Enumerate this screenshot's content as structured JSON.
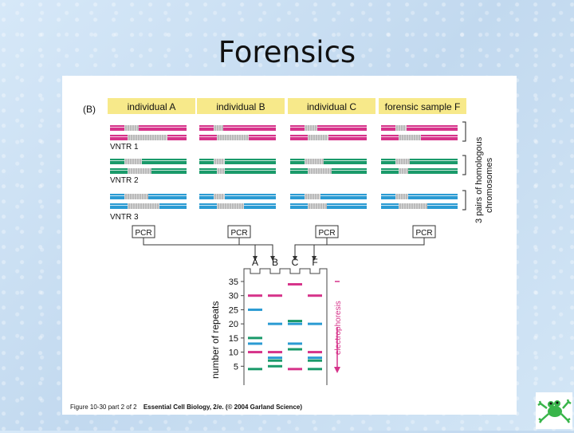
{
  "slide": {
    "title": "Forensics"
  },
  "figure": {
    "panel_label": "(B)",
    "individuals": [
      "individual A",
      "individual B",
      "individual C",
      "forensic sample F"
    ],
    "vntr_labels": [
      "VNTR 1",
      "VNTR 2",
      "VNTR 3"
    ],
    "chromosome_pairs_label_1": "3 pairs of homologous",
    "chromosome_pairs_label_2": "chromosomes",
    "pcr_label": "PCR",
    "lane_labels": [
      "A",
      "B",
      "C",
      "F"
    ],
    "gel_ylabel": "number of repeats",
    "gel_ticks": [
      "35",
      "30",
      "25",
      "20",
      "15",
      "10",
      "5"
    ],
    "electrophoresis_label": "electrophoresis",
    "caption_prefix": "Figure 10-30 part 2 of 2",
    "caption_main": "Essential Cell Biology, 2/e. (© 2004 Garland Science)",
    "colors": {
      "pink": "#d6338a",
      "green": "#1a9a6a",
      "blue": "#2b9bd3",
      "label_bg": "#f7e98a"
    }
  },
  "chart_data": {
    "type": "gel",
    "ylabel": "number of repeats",
    "ylim": [
      0,
      35
    ],
    "lanes": [
      "A",
      "B",
      "C",
      "F"
    ],
    "series": [
      {
        "name": "VNTR 1",
        "color": "pink",
        "bands": {
          "A": [
            10,
            30
          ],
          "B": [
            10,
            30
          ],
          "C": [
            4,
            34
          ],
          "F": [
            10,
            30
          ]
        }
      },
      {
        "name": "VNTR 2",
        "color": "green",
        "bands": {
          "A": [
            4,
            15
          ],
          "B": [
            5,
            7
          ],
          "C": [
            11,
            21
          ],
          "F": [
            4,
            7
          ]
        }
      },
      {
        "name": "VNTR 3",
        "color": "blue",
        "bands": {
          "A": [
            13,
            25
          ],
          "B": [
            8,
            20
          ],
          "C": [
            13,
            20
          ],
          "F": [
            8,
            20
          ]
        }
      }
    ]
  }
}
